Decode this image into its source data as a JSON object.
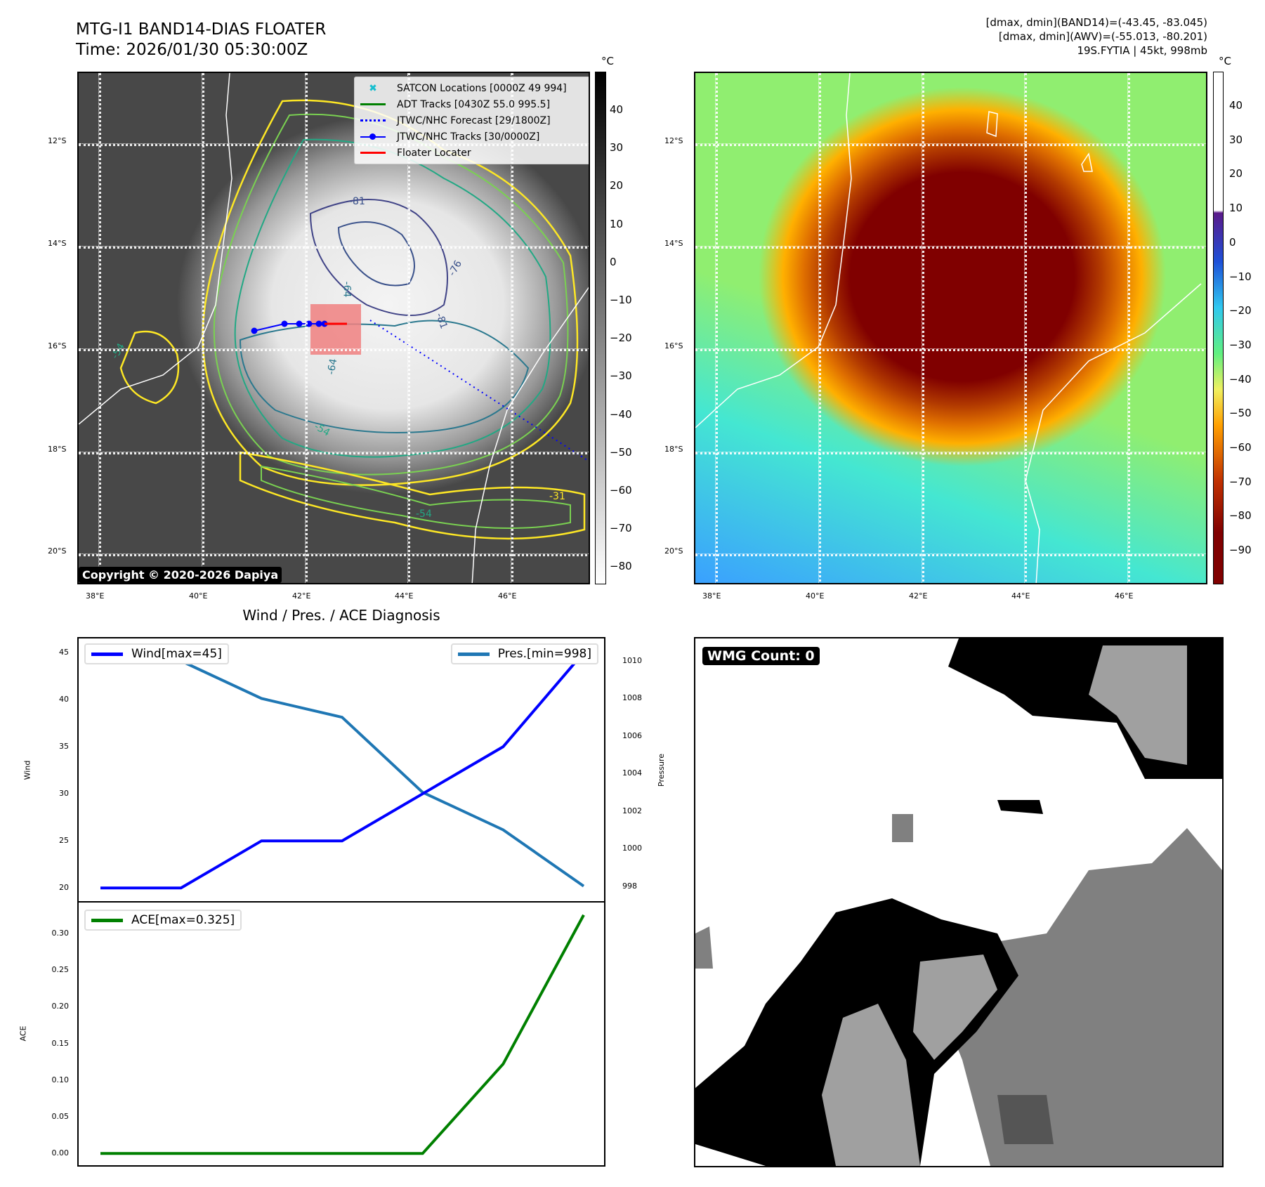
{
  "header": {
    "title": "MTG-I1 BAND14-DIAS FLOATER",
    "time": "Time: 2026/01/30 05:30:00Z",
    "info": [
      "[dmax, dmin](BAND14)=(-43.45, -83.045)",
      "[dmax, dmin](AWV)=(-55.013, -80.201)",
      "19S.FYTIA | 45kt, 998mb"
    ]
  },
  "map": {
    "lon_labels": [
      "38°E",
      "40°E",
      "42°E",
      "44°E",
      "46°E"
    ],
    "lat_labels": [
      "12°S",
      "14°S",
      "16°S",
      "18°S",
      "20°S"
    ],
    "contour_labels": [
      "-81",
      "-76",
      "-64",
      "-64",
      "-54",
      "-54",
      "-31",
      "-54",
      "-81"
    ],
    "copyright": "Copyright © 2020-2026 Dapiya",
    "legend": [
      {
        "label": "SATCON Locations [0000Z 49 994]",
        "color": "#17becf"
      },
      {
        "label": "ADT Tracks [0430Z 55.0 995.5]",
        "color": "#008000"
      },
      {
        "label": "JTWC/NHC Forecast [29/1800Z]",
        "color": "#0000ff"
      },
      {
        "label": "JTWC/NHC Tracks [30/0000Z]",
        "color": "#0000ff"
      },
      {
        "label": "Floater Locater",
        "color": "#ff0000"
      }
    ]
  },
  "cbar_left": {
    "unit": "°C",
    "ticks": [
      "40",
      "30",
      "20",
      "10",
      "0",
      "−10",
      "−20",
      "−30",
      "−40",
      "−50",
      "−60",
      "−70",
      "−80"
    ]
  },
  "cbar_right": {
    "unit": "°C",
    "ticks": [
      "40",
      "30",
      "20",
      "10",
      "0",
      "−10",
      "−20",
      "−30",
      "−40",
      "−50",
      "−60",
      "−70",
      "−80",
      "−90"
    ]
  },
  "wmg": {
    "label": "WMG Count: 0"
  },
  "chart_data": [
    {
      "type": "line",
      "title": "Wind / Pres. / ACE Diagnosis",
      "ylabel": "Wind",
      "y2label": "Pressure",
      "x": [
        0,
        1,
        2,
        3,
        4,
        5,
        6
      ],
      "series": [
        {
          "name": "Wind[max=45]",
          "axis": "left",
          "color": "#0000ff",
          "values": [
            20,
            20,
            25,
            25,
            30,
            35,
            45
          ]
        },
        {
          "name": "Pres.[min=998]",
          "axis": "right",
          "color": "#1f77b4",
          "values": [
            1010,
            1010,
            1008,
            1007,
            1003,
            1001,
            998
          ]
        }
      ],
      "yticks": [
        "20",
        "25",
        "30",
        "35",
        "40",
        "45"
      ],
      "ylim": [
        18.6,
        46.5
      ],
      "y2ticks": [
        "998",
        "1000",
        "1002",
        "1004",
        "1006",
        "1008",
        "1010"
      ],
      "y2lim": [
        997.2,
        1011.2
      ]
    },
    {
      "type": "line",
      "ylabel": "ACE",
      "x": [
        0,
        1,
        2,
        3,
        4,
        5,
        6
      ],
      "series": [
        {
          "name": "ACE[max=0.325]",
          "color": "#008000",
          "values": [
            0,
            0,
            0,
            0,
            0,
            0.122,
            0.325
          ]
        }
      ],
      "yticks": [
        "0.00",
        "0.05",
        "0.10",
        "0.15",
        "0.20",
        "0.25",
        "0.30"
      ],
      "ylim": [
        -0.016,
        0.342
      ]
    }
  ]
}
